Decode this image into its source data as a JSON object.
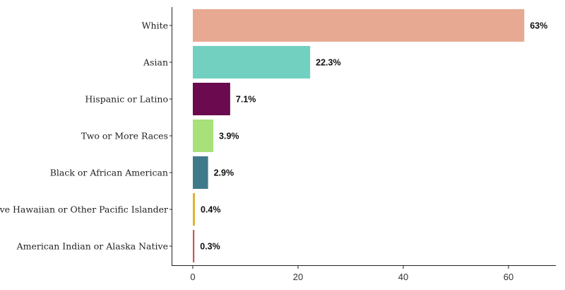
{
  "chart_data": {
    "type": "bar",
    "orientation": "horizontal",
    "title": "",
    "xlabel": "",
    "ylabel": "",
    "categories": [
      "White",
      "Asian",
      "Hispanic or Latino",
      "Two or More Races",
      "Black or African American",
      "Native Hawaiian or Other Pacific Islander",
      "American Indian or Alaska Native"
    ],
    "values": [
      63,
      22.3,
      7.1,
      3.9,
      2.9,
      0.4,
      0.3
    ],
    "value_labels": [
      "63%",
      "22.3%",
      "7.1%",
      "3.9%",
      "2.9%",
      "0.4%",
      "0.3%"
    ],
    "colors": [
      "#E8A992",
      "#72D0C0",
      "#6B0A4E",
      "#A8E07A",
      "#3F7A8A",
      "#E0B330",
      "#C95A5A"
    ],
    "xlim": [
      0,
      69
    ],
    "xticks": [
      0,
      20,
      40,
      60
    ],
    "grid": false,
    "legend": "none"
  }
}
